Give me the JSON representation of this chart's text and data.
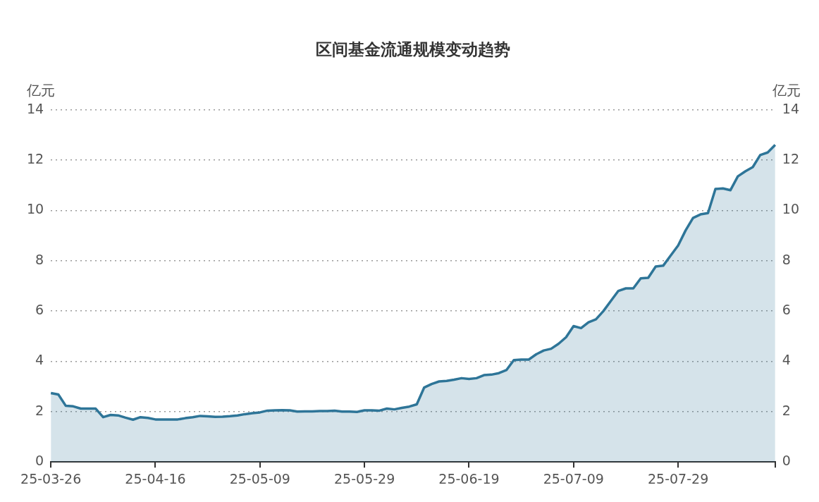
{
  "chart_data": {
    "type": "area",
    "title": "区间基金流通规模变动趋势",
    "ylabel": "亿元",
    "y2label": "亿元",
    "categories": [
      "25-03-26",
      null,
      null,
      null,
      null,
      null,
      null,
      null,
      null,
      null,
      null,
      null,
      null,
      null,
      "25-04-16",
      null,
      null,
      null,
      null,
      null,
      null,
      null,
      null,
      null,
      null,
      null,
      null,
      null,
      "25-05-09",
      null,
      null,
      null,
      null,
      null,
      null,
      null,
      null,
      null,
      null,
      null,
      null,
      null,
      "25-05-29",
      null,
      null,
      null,
      null,
      null,
      null,
      null,
      null,
      null,
      null,
      null,
      null,
      null,
      "25-06-19",
      null,
      null,
      null,
      null,
      null,
      null,
      null,
      null,
      null,
      null,
      null,
      null,
      null,
      "25-07-09",
      null,
      null,
      null,
      null,
      null,
      null,
      null,
      null,
      null,
      null,
      null,
      null,
      null,
      "25-07-29",
      null,
      null,
      null,
      null,
      null,
      null,
      null,
      null,
      null,
      null,
      null,
      null,
      null
    ],
    "series": [
      {
        "color": "#2e7598",
        "values": [
          2.74,
          2.68,
          2.23,
          2.21,
          2.12,
          2.12,
          2.12,
          1.78,
          1.87,
          1.85,
          1.76,
          1.68,
          1.78,
          1.75,
          1.69,
          1.69,
          1.69,
          1.69,
          1.74,
          1.78,
          1.83,
          1.81,
          1.79,
          1.8,
          1.82,
          1.85,
          1.9,
          1.94,
          1.97,
          2.04,
          2.05,
          2.06,
          2.05,
          2.0,
          2.01,
          2.01,
          2.02,
          2.02,
          2.04,
          2.0,
          2.0,
          1.99,
          2.05,
          2.05,
          2.04,
          2.12,
          2.09,
          2.15,
          2.2,
          2.29,
          2.96,
          3.1,
          3.2,
          3.22,
          3.27,
          3.33,
          3.3,
          3.33,
          3.45,
          3.47,
          3.53,
          3.65,
          4.05,
          4.07,
          4.07,
          4.28,
          4.43,
          4.5,
          4.7,
          4.96,
          5.4,
          5.32,
          5.55,
          5.67,
          6.0,
          6.4,
          6.8,
          6.9,
          6.9,
          7.3,
          7.32,
          7.77,
          7.8,
          8.2,
          8.6,
          9.2,
          9.7,
          9.84,
          9.89,
          10.85,
          10.87,
          10.8,
          11.35,
          11.55,
          11.72,
          12.2,
          12.3,
          12.6
        ]
      }
    ],
    "ylim": [
      0,
      14
    ],
    "yticks": [
      0,
      2,
      4,
      6,
      8,
      10,
      12,
      14
    ],
    "y2lim": [
      0,
      14
    ],
    "y2ticks": [
      0,
      2,
      4,
      6,
      8,
      10,
      12,
      14
    ],
    "grid": "y",
    "legend": false,
    "marker": "none",
    "line_style": "solid"
  }
}
